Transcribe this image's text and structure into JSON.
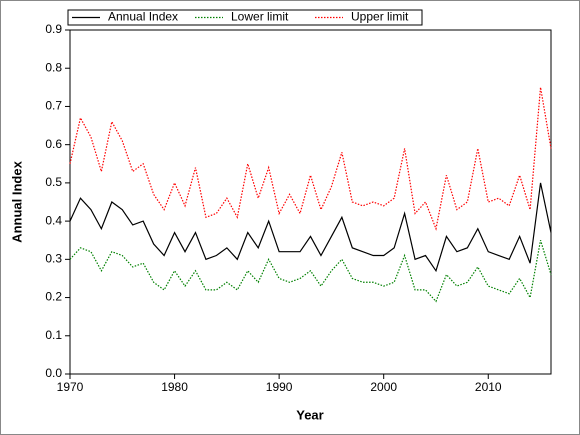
{
  "chart_data": {
    "type": "line",
    "x_label": "Year",
    "y_label": "Annual Index",
    "x": [
      1970,
      1971,
      1972,
      1973,
      1974,
      1975,
      1976,
      1977,
      1978,
      1979,
      1980,
      1981,
      1982,
      1983,
      1984,
      1985,
      1986,
      1987,
      1988,
      1989,
      1990,
      1991,
      1992,
      1993,
      1994,
      1995,
      1996,
      1997,
      1998,
      1999,
      2000,
      2001,
      2002,
      2003,
      2004,
      2005,
      2006,
      2007,
      2008,
      2009,
      2010,
      2011,
      2012,
      2013,
      2014,
      2015,
      2016
    ],
    "series": [
      {
        "name": "Annual Index",
        "color": "#000000",
        "dash": "solid",
        "values": [
          0.4,
          0.46,
          0.43,
          0.38,
          0.45,
          0.43,
          0.39,
          0.4,
          0.34,
          0.31,
          0.37,
          0.32,
          0.37,
          0.3,
          0.31,
          0.33,
          0.3,
          0.37,
          0.33,
          0.4,
          0.32,
          0.32,
          0.32,
          0.36,
          0.31,
          0.36,
          0.41,
          0.33,
          0.32,
          0.31,
          0.31,
          0.33,
          0.42,
          0.3,
          0.31,
          0.27,
          0.36,
          0.32,
          0.33,
          0.38,
          0.32,
          0.31,
          0.3,
          0.36,
          0.29,
          0.5,
          0.37
        ]
      },
      {
        "name": "Lower limit",
        "color": "#008000",
        "dash": "dotted",
        "values": [
          0.3,
          0.33,
          0.32,
          0.27,
          0.32,
          0.31,
          0.28,
          0.29,
          0.24,
          0.22,
          0.27,
          0.23,
          0.27,
          0.22,
          0.22,
          0.24,
          0.22,
          0.27,
          0.24,
          0.3,
          0.25,
          0.24,
          0.25,
          0.27,
          0.23,
          0.27,
          0.3,
          0.25,
          0.24,
          0.24,
          0.23,
          0.24,
          0.31,
          0.22,
          0.22,
          0.19,
          0.26,
          0.23,
          0.24,
          0.28,
          0.23,
          0.22,
          0.21,
          0.25,
          0.2,
          0.35,
          0.26
        ]
      },
      {
        "name": "Upper limit",
        "color": "#ff0000",
        "dash": "dotted",
        "values": [
          0.55,
          0.67,
          0.62,
          0.53,
          0.66,
          0.61,
          0.53,
          0.55,
          0.47,
          0.43,
          0.5,
          0.44,
          0.54,
          0.41,
          0.42,
          0.46,
          0.41,
          0.55,
          0.46,
          0.54,
          0.42,
          0.47,
          0.42,
          0.52,
          0.43,
          0.49,
          0.58,
          0.45,
          0.44,
          0.45,
          0.44,
          0.46,
          0.59,
          0.42,
          0.45,
          0.38,
          0.52,
          0.43,
          0.45,
          0.59,
          0.45,
          0.46,
          0.44,
          0.52,
          0.43,
          0.75,
          0.59
        ]
      }
    ],
    "xlim": [
      1970,
      2016
    ],
    "xticks": [
      1970,
      1980,
      1990,
      2000,
      2010
    ],
    "ylim": [
      0,
      0.9
    ],
    "yticks": [
      {
        "value": 0,
        "label": "0.0"
      },
      0.1,
      0.2,
      0.3,
      0.4,
      0.5,
      0.6,
      0.7,
      0.8,
      0.9
    ],
    "grid": false,
    "legend": "top"
  }
}
